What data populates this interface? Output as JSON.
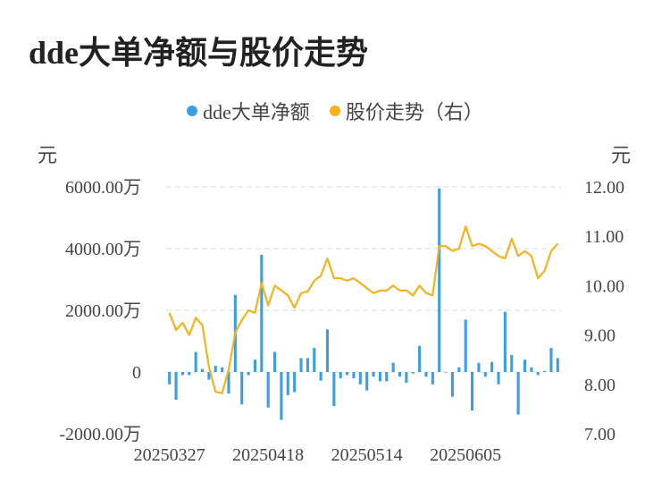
{
  "title": "dde大单净额与股价走势",
  "legend": {
    "series1": "dde大单净额",
    "series2": "股价走势（右）"
  },
  "units": {
    "left": "元",
    "right": "元"
  },
  "colors": {
    "bar": "#3a9ee4",
    "line": "#f5b21b",
    "grid": "#e6e6e6"
  },
  "chart_data": {
    "type": "bar+line",
    "x_tick_labels": [
      "20250327",
      "20250418",
      "20250514",
      "20250605"
    ],
    "x_tick_indices": [
      0,
      15,
      30,
      45
    ],
    "y_left": {
      "ticks": [
        6000,
        4000,
        2000,
        0,
        -2000
      ],
      "tick_labels": [
        "6000.00万",
        "4000.00万",
        "2000.00万",
        "0",
        "-2000.00万"
      ],
      "range": [
        -2000,
        6000
      ]
    },
    "y_right": {
      "ticks": [
        12,
        11,
        10,
        9,
        8,
        7
      ],
      "tick_labels": [
        "12.00",
        "11.00",
        "10.00",
        "9.00",
        "8.00",
        "7.00"
      ],
      "range": [
        7,
        12
      ]
    },
    "series": [
      {
        "name": "dde大单净额",
        "type": "bar",
        "axis": "left",
        "values": [
          -400,
          -900,
          -100,
          -100,
          650,
          100,
          -250,
          200,
          150,
          -700,
          2500,
          -1050,
          -100,
          400,
          3800,
          -1150,
          650,
          -1550,
          -750,
          -650,
          450,
          450,
          780,
          -280,
          1380,
          -1100,
          -200,
          -100,
          -200,
          -400,
          -600,
          -150,
          -300,
          -300,
          300,
          -150,
          -350,
          -50,
          850,
          -150,
          -400,
          5950,
          0,
          -800,
          150,
          1700,
          -1250,
          300,
          -150,
          330,
          -400,
          1950,
          550,
          -1380,
          400,
          150,
          -100,
          30,
          780,
          450
        ]
      },
      {
        "name": "股价走势（右）",
        "type": "line",
        "axis": "right",
        "values": [
          9.45,
          9.1,
          9.25,
          9.0,
          9.35,
          9.2,
          8.35,
          7.85,
          7.82,
          8.3,
          9.05,
          9.3,
          9.5,
          9.45,
          10.05,
          9.6,
          10.0,
          9.9,
          9.8,
          9.55,
          9.85,
          9.88,
          10.1,
          10.2,
          10.55,
          10.15,
          10.15,
          10.1,
          10.15,
          10.05,
          9.95,
          9.85,
          9.9,
          9.9,
          10.0,
          9.9,
          9.9,
          9.8,
          10.0,
          9.85,
          9.8,
          10.8,
          10.8,
          10.7,
          10.75,
          11.2,
          10.8,
          10.85,
          10.8,
          10.7,
          10.6,
          10.55,
          10.95,
          10.6,
          10.7,
          10.6,
          10.15,
          10.3,
          10.7,
          10.85
        ]
      }
    ],
    "grid": true,
    "legend_position": "top-center"
  }
}
